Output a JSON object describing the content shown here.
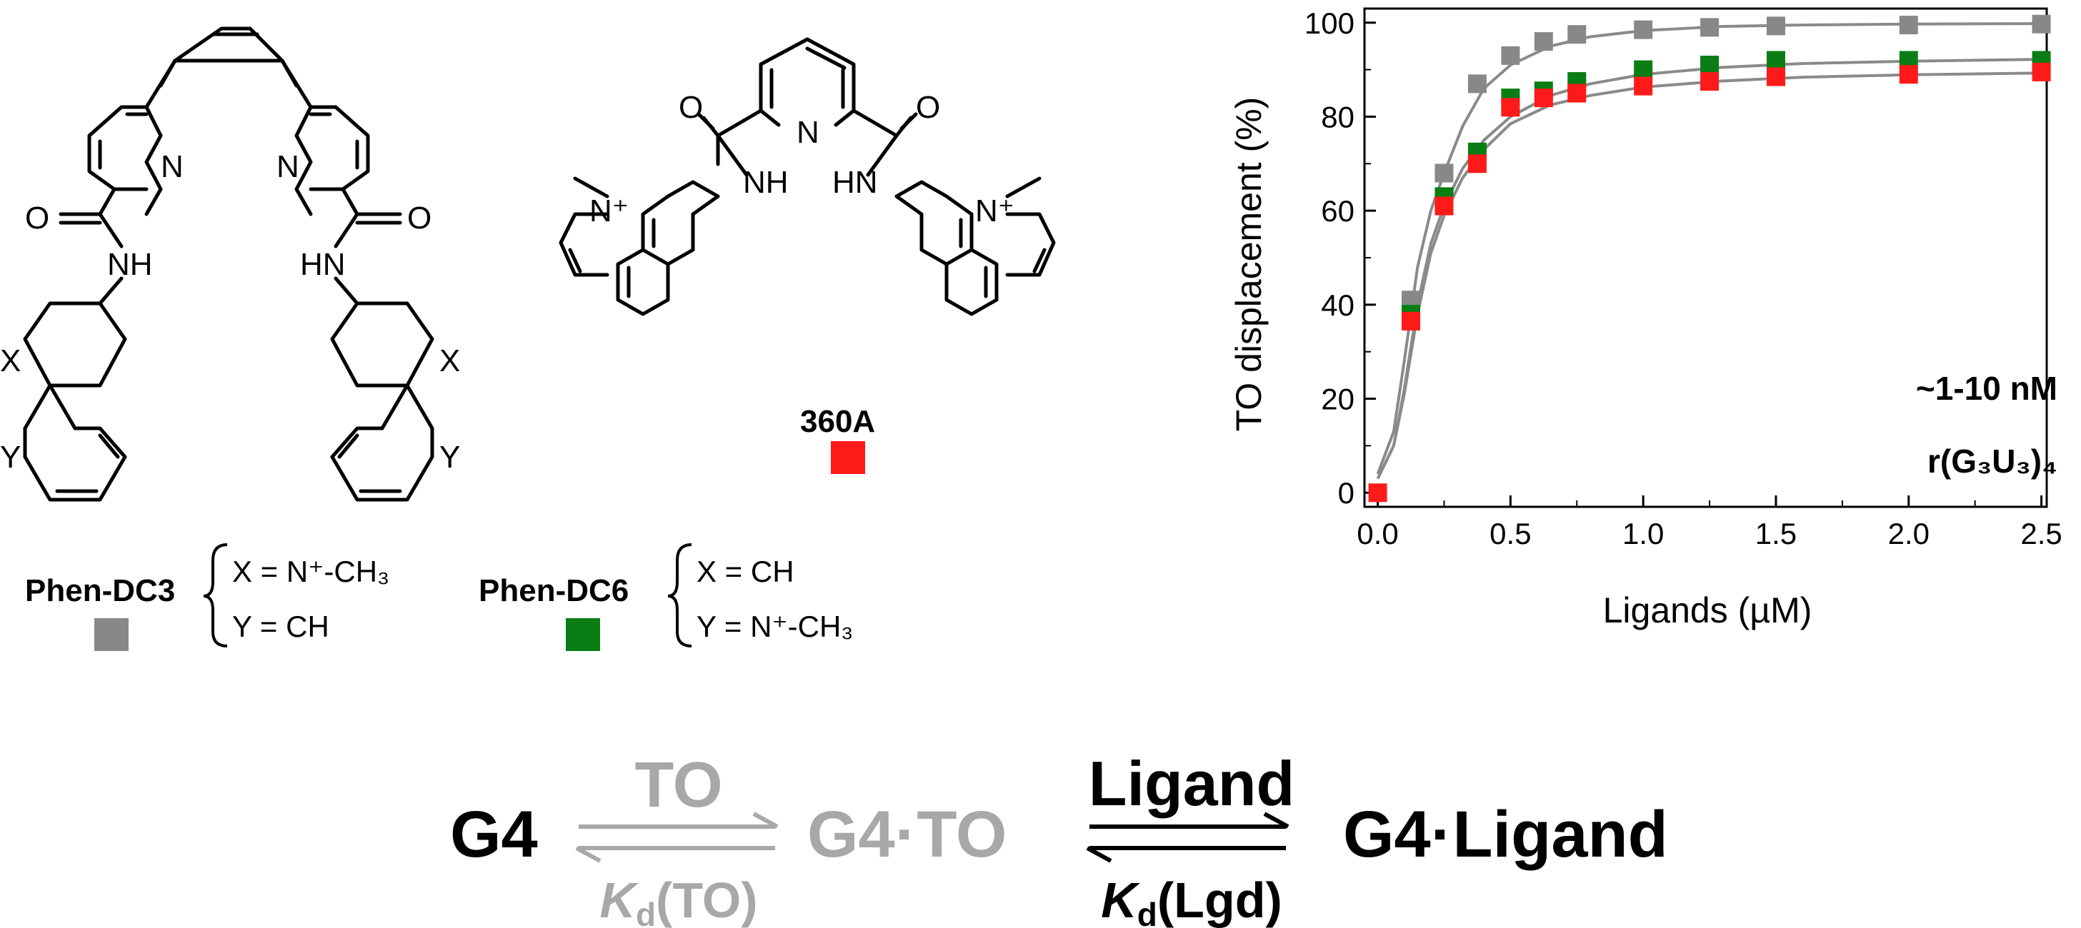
{
  "compounds": {
    "phen_dc3": {
      "name": "Phen-DC3",
      "x_def": "X = N⁺-CH₃",
      "y_def": "Y = CH",
      "color": "#888888"
    },
    "phen_dc6": {
      "name": "Phen-DC6",
      "x_def": "X = CH",
      "y_def": "Y = N⁺-CH₃",
      "color": "#0a7d14"
    },
    "c360a": {
      "name": "360A",
      "color": "#ff1a1a"
    },
    "atoms": {
      "n": "N",
      "o": "O",
      "nh": "NH",
      "hn": "HN",
      "x": "X",
      "y": "Y",
      "nplus": "N⁺"
    }
  },
  "chart_data": {
    "type": "scatter",
    "xlabel": "Ligands (µM)",
    "ylabel": "TO displacement (%)",
    "xlim": [
      0,
      2.5
    ],
    "ylim": [
      0,
      100
    ],
    "xticks": [
      "0.0",
      "0.5",
      "1.0",
      "1.5",
      "2.0",
      "2.5"
    ],
    "yticks": [
      "0",
      "20",
      "40",
      "60",
      "80",
      "100"
    ],
    "annotation_kd": "~1-10 nM",
    "annotation_target": "r(G₃U₃)₄",
    "fit_color": "#8a8a8a",
    "series": [
      {
        "key": "phen_dc3",
        "color": "#888888",
        "x": [
          0.125,
          0.25,
          0.375,
          0.5,
          0.625,
          0.75,
          1.0,
          1.25,
          1.5,
          2.0,
          2.5
        ],
        "y": [
          41,
          68,
          87,
          93,
          96,
          97.5,
          98.5,
          99,
          99.3,
          99.5,
          99.7
        ],
        "fit": [
          [
            0,
            4
          ],
          [
            0.06,
            13
          ],
          [
            0.1,
            28
          ],
          [
            0.15,
            48
          ],
          [
            0.2,
            60
          ],
          [
            0.25,
            68
          ],
          [
            0.32,
            78
          ],
          [
            0.4,
            86
          ],
          [
            0.5,
            91
          ],
          [
            0.65,
            95
          ],
          [
            0.8,
            97
          ],
          [
            1.0,
            98.3
          ],
          [
            1.3,
            99.2
          ],
          [
            1.6,
            99.5
          ],
          [
            2.0,
            99.7
          ],
          [
            2.5,
            99.8
          ]
        ]
      },
      {
        "key": "phen_dc6",
        "color": "#0a7d14",
        "x": [
          0.125,
          0.25,
          0.375,
          0.5,
          0.625,
          0.75,
          1.0,
          1.25,
          1.5,
          2.0,
          2.5
        ],
        "y": [
          38,
          63,
          72.5,
          84,
          85.5,
          87.5,
          90,
          91,
          92,
          92,
          92
        ],
        "fit": [
          [
            0,
            3
          ],
          [
            0.06,
            10
          ],
          [
            0.1,
            22
          ],
          [
            0.15,
            40
          ],
          [
            0.2,
            53
          ],
          [
            0.25,
            61
          ],
          [
            0.32,
            69
          ],
          [
            0.4,
            75
          ],
          [
            0.5,
            80
          ],
          [
            0.65,
            84.5
          ],
          [
            0.8,
            87
          ],
          [
            1.0,
            89
          ],
          [
            1.3,
            90.5
          ],
          [
            1.6,
            91.3
          ],
          [
            2.0,
            91.8
          ],
          [
            2.5,
            92.2
          ]
        ]
      },
      {
        "key": "c360a",
        "color": "#ff1a1a",
        "x": [
          0,
          0.125,
          0.25,
          0.375,
          0.5,
          0.625,
          0.75,
          1.0,
          1.25,
          1.5,
          2.0,
          2.5
        ],
        "y": [
          0,
          36.5,
          61,
          70,
          82,
          84,
          85,
          86.5,
          87.5,
          88.5,
          89,
          89.5
        ],
        "fit": [
          [
            0,
            3
          ],
          [
            0.06,
            10
          ],
          [
            0.1,
            21
          ],
          [
            0.15,
            38
          ],
          [
            0.2,
            51
          ],
          [
            0.25,
            59
          ],
          [
            0.32,
            67
          ],
          [
            0.4,
            73
          ],
          [
            0.5,
            78.5
          ],
          [
            0.65,
            82.5
          ],
          [
            0.8,
            84.5
          ],
          [
            1.0,
            86.3
          ],
          [
            1.3,
            87.6
          ],
          [
            1.6,
            88.4
          ],
          [
            2.0,
            88.9
          ],
          [
            2.5,
            89.3
          ]
        ]
      }
    ]
  },
  "equilibrium": {
    "g4": "G4",
    "to": "TO",
    "kd_to_sub": "d",
    "kd_to_k": "K",
    "kd_to_paren": "(TO)",
    "g4_to": "G4·TO",
    "ligand": "Ligand",
    "kd_lgd_k": "K",
    "kd_lgd_sub": "d",
    "kd_lgd_paren": "(Lgd)",
    "g4_ligand": "G4·Ligand",
    "grey": "#a8a8a8"
  }
}
